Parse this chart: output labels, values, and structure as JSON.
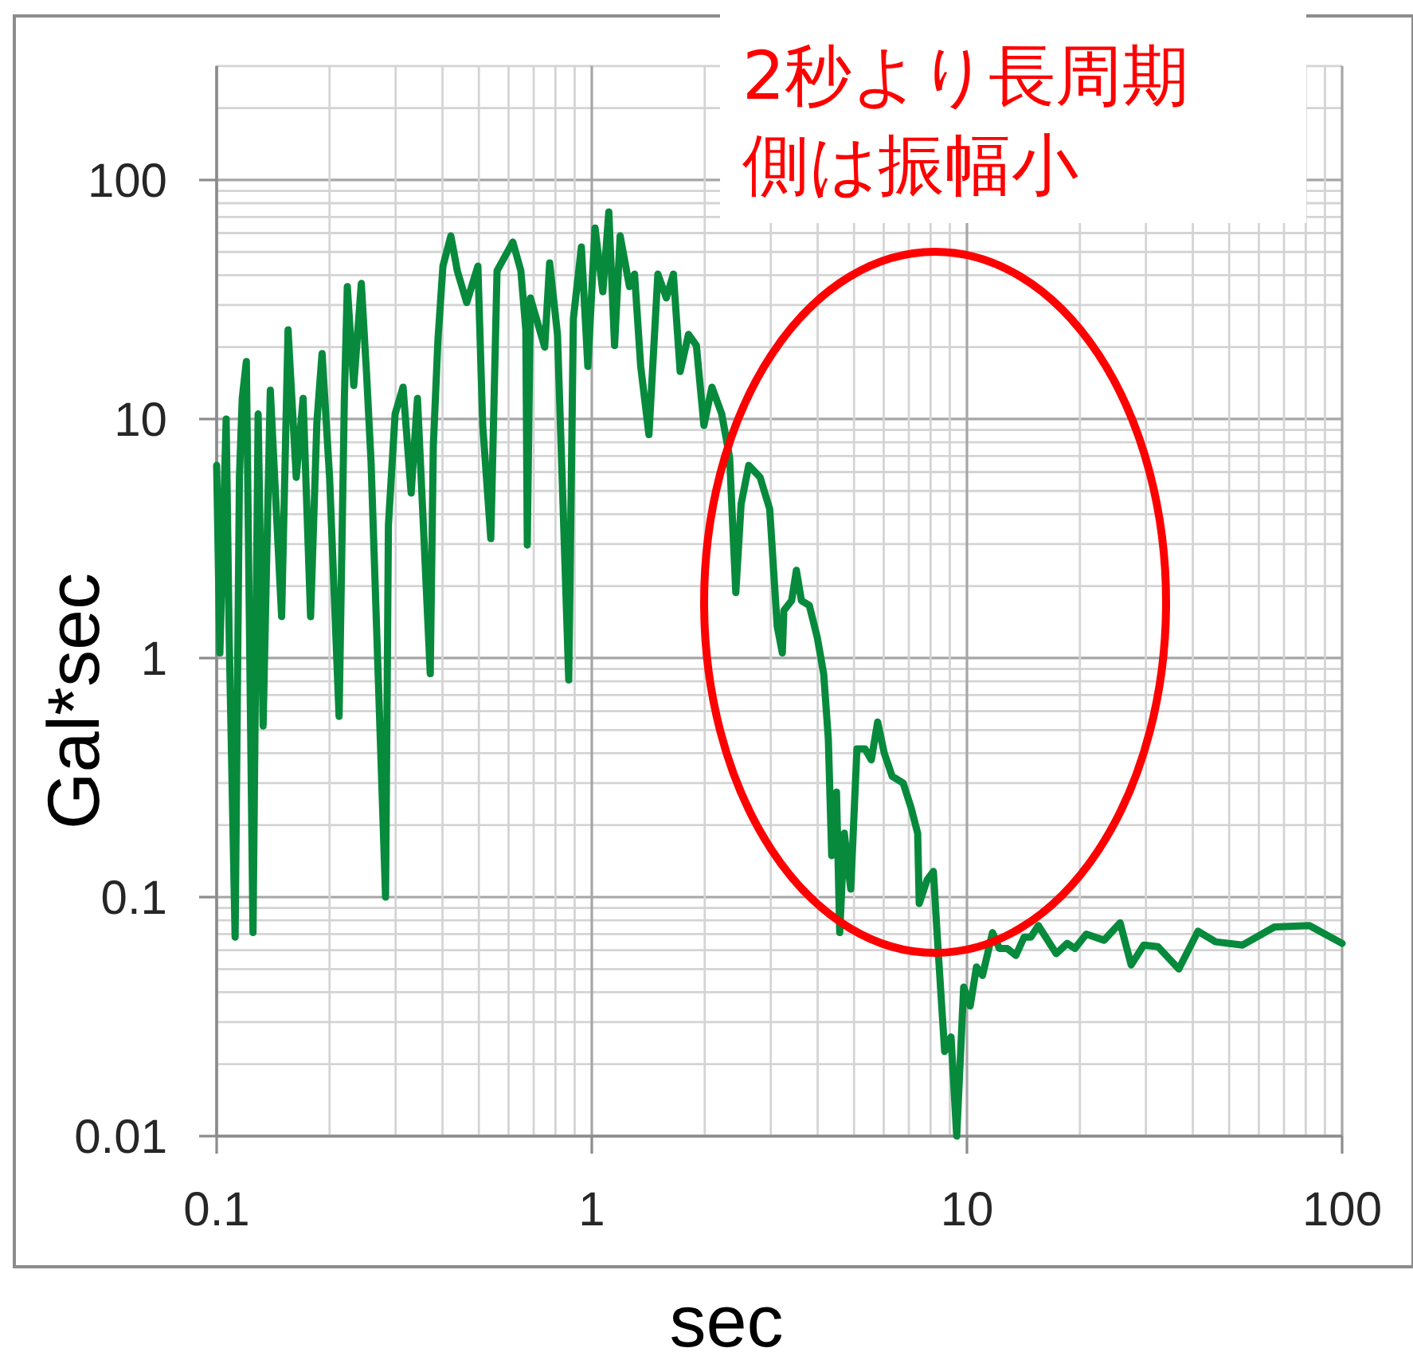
{
  "chart_data": {
    "type": "line",
    "xlabel": "sec",
    "ylabel": "Gal*sec",
    "annotations": [
      "2秒より長周期側は振幅小"
    ],
    "log": "xy",
    "grid": true,
    "line_style": "solid",
    "xlim": [
      0.1,
      100
    ],
    "ylim": [
      0.01,
      300
    ],
    "xticks": [
      0.1,
      {
        "value": 0.2,
        "label": null
      },
      {
        "value": 0.3,
        "label": null
      },
      {
        "value": 0.4,
        "label": null
      },
      {
        "value": 0.5,
        "label": null
      },
      {
        "value": 0.6,
        "label": null
      },
      {
        "value": 0.7,
        "label": null
      },
      {
        "value": 0.8,
        "label": null
      },
      {
        "value": 0.9,
        "label": null
      },
      1,
      {
        "value": 2,
        "label": null
      },
      {
        "value": 3,
        "label": null
      },
      {
        "value": 4,
        "label": null
      },
      {
        "value": 5,
        "label": null
      },
      {
        "value": 6,
        "label": null
      },
      {
        "value": 7,
        "label": null
      },
      {
        "value": 8,
        "label": null
      },
      {
        "value": 9,
        "label": null
      },
      10,
      {
        "value": 20,
        "label": null
      },
      {
        "value": 30,
        "label": null
      },
      {
        "value": 40,
        "label": null
      },
      {
        "value": 50,
        "label": null
      },
      {
        "value": 60,
        "label": null
      },
      {
        "value": 70,
        "label": null
      },
      {
        "value": 80,
        "label": null
      },
      {
        "value": 90,
        "label": null
      },
      100
    ],
    "yticks": [
      0.01,
      {
        "value": 0.02,
        "label": null
      },
      {
        "value": 0.03,
        "label": null
      },
      {
        "value": 0.04,
        "label": null
      },
      {
        "value": 0.05,
        "label": null
      },
      {
        "value": 0.06,
        "label": null
      },
      {
        "value": 0.07,
        "label": null
      },
      {
        "value": 0.08,
        "label": null
      },
      {
        "value": 0.09,
        "label": null
      },
      0.1,
      {
        "value": 0.2,
        "label": null
      },
      {
        "value": 0.3,
        "label": null
      },
      {
        "value": 0.4,
        "label": null
      },
      {
        "value": 0.5,
        "label": null
      },
      {
        "value": 0.6,
        "label": null
      },
      {
        "value": 0.7,
        "label": null
      },
      {
        "value": 0.8,
        "label": null
      },
      {
        "value": 0.9,
        "label": null
      },
      1,
      {
        "value": 2,
        "label": null
      },
      {
        "value": 3,
        "label": null
      },
      {
        "value": 4,
        "label": null
      },
      {
        "value": 5,
        "label": null
      },
      {
        "value": 6,
        "label": null
      },
      {
        "value": 7,
        "label": null
      },
      {
        "value": 8,
        "label": null
      },
      {
        "value": 9,
        "label": null
      },
      10,
      {
        "value": 20,
        "label": null
      },
      {
        "value": 30,
        "label": null
      },
      {
        "value": 40,
        "label": null
      },
      {
        "value": 50,
        "label": null
      },
      {
        "value": 60,
        "label": null
      },
      {
        "value": 70,
        "label": null
      },
      {
        "value": 80,
        "label": null
      },
      {
        "value": 90,
        "label": null
      },
      100,
      {
        "value": 200,
        "label": null
      },
      {
        "value": 300,
        "label": null
      }
    ],
    "series": [
      {
        "color": "#078a3c",
        "x": [
          0.1,
          0.102,
          0.106,
          0.108,
          0.112,
          0.115,
          0.117,
          0.12,
          0.125,
          0.129,
          0.133,
          0.139,
          0.149,
          0.155,
          0.163,
          0.17,
          0.178,
          0.185,
          0.191,
          0.2,
          0.212,
          0.219,
          0.223,
          0.232,
          0.243,
          0.251,
          0.258,
          0.282,
          0.287,
          0.299,
          0.314,
          0.33,
          0.343,
          0.371,
          0.378,
          0.389,
          0.401,
          0.421,
          0.438,
          0.464,
          0.497,
          0.512,
          0.538,
          0.559,
          0.616,
          0.647,
          0.667,
          0.673,
          0.686,
          0.749,
          0.772,
          0.81,
          0.868,
          0.893,
          0.938,
          0.976,
          1.02,
          1.07,
          1.11,
          1.15,
          1.19,
          1.26,
          1.3,
          1.35,
          1.42,
          1.5,
          1.58,
          1.65,
          1.72,
          1.81,
          1.9,
          1.99,
          2.09,
          2.22,
          2.33,
          2.42,
          2.5,
          2.62,
          2.81,
          2.98,
          3.12,
          3.22,
          3.25,
          3.41,
          3.51,
          3.62,
          3.8,
          3.99,
          4.15,
          4.27,
          4.36,
          4.49,
          4.58,
          4.71,
          4.9,
          5.09,
          5.35,
          5.56,
          5.78,
          6.02,
          6.32,
          6.76,
          7.1,
          7.39,
          7.46,
          7.83,
          8.14,
          8.31,
          8.47,
          8.72,
          9.07,
          9.39,
          9.8,
          10.2,
          10.6,
          11,
          11.7,
          12.2,
          12.8,
          13.5,
          14.2,
          14.8,
          15.5,
          17.3,
          18.5,
          19.4,
          20.8,
          23.2,
          25.6,
          27.4,
          29.6,
          32.3,
          36.7,
          41.3,
          46,
          54.3,
          66,
          81.8,
          100
        ],
        "values": [
          6.4,
          1.05,
          10,
          1.22,
          0.068,
          5.7,
          12.2,
          17.4,
          0.071,
          10.5,
          0.52,
          13.2,
          1.49,
          23.6,
          5.7,
          12.2,
          1.49,
          9.7,
          18.8,
          5.7,
          0.57,
          12.2,
          35.8,
          13.8,
          36.9,
          15.4,
          6.6,
          0.1,
          3.6,
          10.5,
          13.6,
          4.9,
          12.2,
          0.86,
          7.7,
          21.5,
          43.6,
          58.4,
          41.7,
          30.7,
          43.6,
          9.4,
          3.16,
          41.7,
          55,
          41.7,
          23.6,
          2.97,
          32.1,
          20,
          45,
          22.6,
          0.81,
          26.3,
          52.5,
          16.6,
          63,
          34.1,
          73.6,
          20.3,
          58.4,
          35.8,
          40.4,
          16.6,
          8.6,
          40.4,
          32.1,
          40.4,
          15.8,
          22.6,
          20.3,
          9.4,
          13.6,
          10.5,
          6.9,
          1.88,
          4.4,
          6.4,
          5.7,
          4.2,
          1.36,
          1.05,
          1.58,
          1.74,
          2.33,
          1.74,
          1.66,
          1.22,
          0.86,
          0.46,
          0.149,
          0.275,
          0.071,
          0.185,
          0.108,
          0.417,
          0.417,
          0.375,
          0.54,
          0.4,
          0.32,
          0.3,
          0.236,
          0.185,
          0.094,
          0.118,
          0.128,
          0.074,
          0.046,
          0.0226,
          0.026,
          0.01,
          0.042,
          0.035,
          0.051,
          0.047,
          0.071,
          0.061,
          0.061,
          0.057,
          0.068,
          0.068,
          0.076,
          0.058,
          0.064,
          0.061,
          0.07,
          0.066,
          0.078,
          0.052,
          0.063,
          0.062,
          0.05,
          0.072,
          0.065,
          0.063,
          0.075,
          0.076,
          0.064
        ]
      }
    ]
  }
}
